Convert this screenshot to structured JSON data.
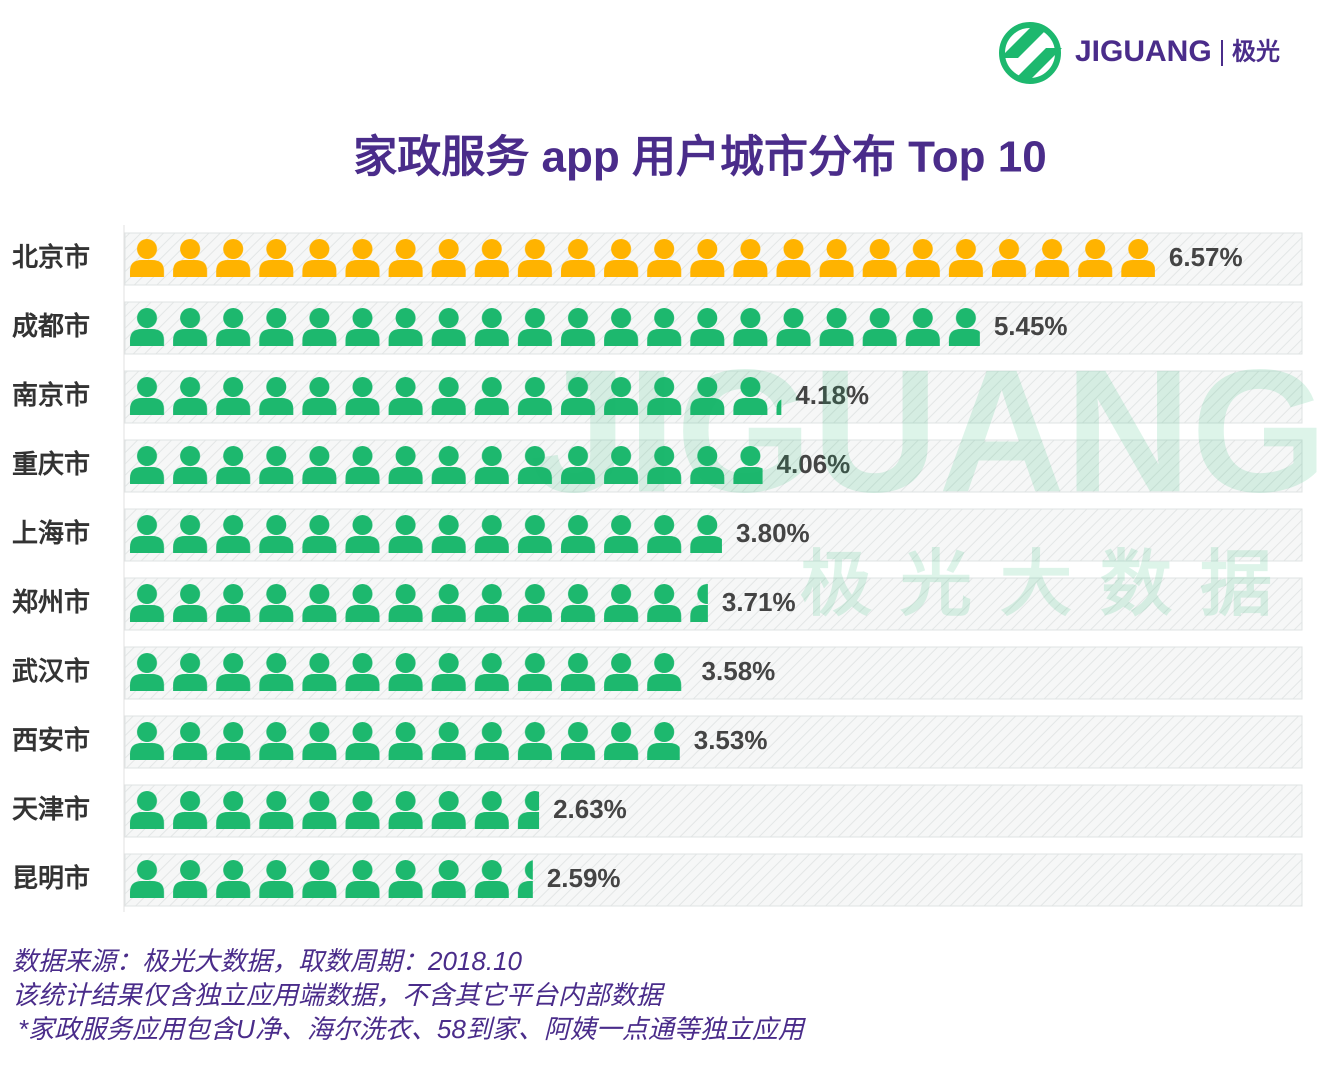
{
  "brand": {
    "name": "JIGUANG",
    "cn": "极光"
  },
  "watermark": {
    "name": "JIGUANG",
    "cn": "极光大数据"
  },
  "chart_data": {
    "type": "pictogram",
    "title": "家政服务 app 用户城市分布 Top 10",
    "categories": [
      "北京市",
      "成都市",
      "南京市",
      "重庆市",
      "上海市",
      "郑州市",
      "武汉市",
      "西安市",
      "天津市",
      "昆明市"
    ],
    "values": [
      6.57,
      5.45,
      4.18,
      4.06,
      3.8,
      3.71,
      3.58,
      3.53,
      2.63,
      2.59
    ],
    "value_labels": [
      "6.57%",
      "5.45%",
      "4.18%",
      "4.06%",
      "3.80%",
      "3.71%",
      "3.58%",
      "3.53%",
      "2.63%",
      "2.59%"
    ],
    "colors": [
      "#ffb300",
      "#1db86e",
      "#1db86e",
      "#1db86e",
      "#1db86e",
      "#1db86e",
      "#1db86e",
      "#1db86e",
      "#1db86e",
      "#1db86e"
    ]
  },
  "notes": [
    "数据来源：极光大数据，取数周期：2018.10",
    "该统计结果仅含独立应用端数据，不含其它平台内部数据",
    "*家政服务应用包含U净、海尔洗衣、58到家、阿姨一点通等独立应用"
  ]
}
